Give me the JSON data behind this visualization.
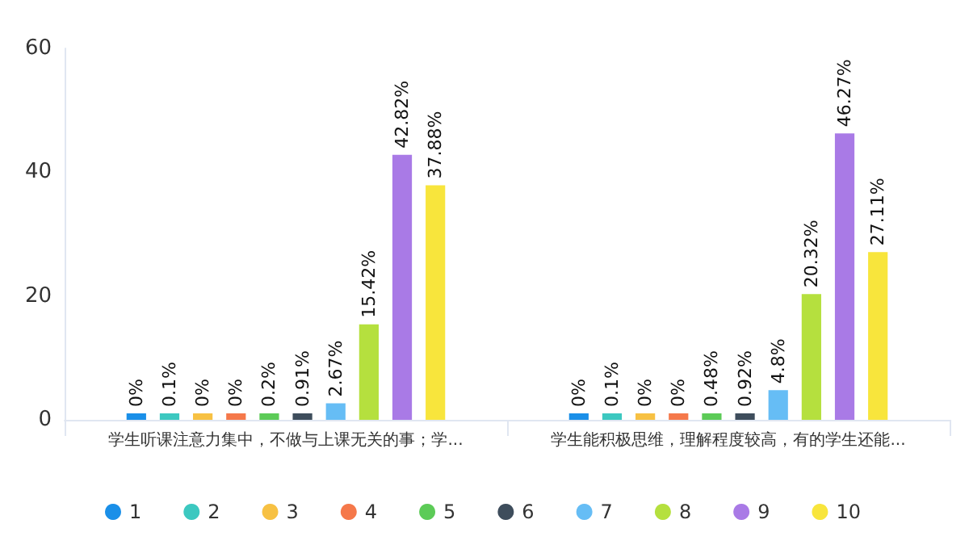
{
  "chart_data": {
    "type": "bar",
    "categories": [
      "学生听课注意力集中，不做与上课无关的事；学...",
      "学生能积极思维，理解程度较高，有的学生还能..."
    ],
    "series": [
      {
        "name": "1",
        "color": "#1a8fe8",
        "values": [
          0,
          0
        ],
        "value_labels": [
          "0%",
          "0%"
        ]
      },
      {
        "name": "2",
        "color": "#3cc8c0",
        "values": [
          0.1,
          0.1
        ],
        "value_labels": [
          "0.1%",
          "0.1%"
        ]
      },
      {
        "name": "3",
        "color": "#f7c143",
        "values": [
          0,
          0
        ],
        "value_labels": [
          "0%",
          "0%"
        ]
      },
      {
        "name": "4",
        "color": "#f5784a",
        "values": [
          0,
          0
        ],
        "value_labels": [
          "0%",
          "0%"
        ]
      },
      {
        "name": "5",
        "color": "#5ccb57",
        "values": [
          0.2,
          0.48
        ],
        "value_labels": [
          "0.2%",
          "0.48%"
        ]
      },
      {
        "name": "6",
        "color": "#3e4d5c",
        "values": [
          0.91,
          0.92
        ],
        "value_labels": [
          "0.91%",
          "0.92%"
        ]
      },
      {
        "name": "7",
        "color": "#66bdf5",
        "values": [
          2.67,
          4.8
        ],
        "value_labels": [
          "2.67%",
          "4.8%"
        ]
      },
      {
        "name": "8",
        "color": "#b5e03e",
        "values": [
          15.42,
          20.32
        ],
        "value_labels": [
          "15.42%",
          "20.32%"
        ]
      },
      {
        "name": "9",
        "color": "#a97ae6",
        "values": [
          42.82,
          46.27
        ],
        "value_labels": [
          "42.82%",
          "46.27%"
        ]
      },
      {
        "name": "10",
        "color": "#f8e53c",
        "values": [
          37.88,
          27.11
        ],
        "value_labels": [
          "37.88%",
          "27.11%"
        ]
      }
    ],
    "ylim": [
      0,
      60
    ],
    "yticks": [
      0,
      20,
      40,
      60
    ],
    "grid": false,
    "legend": "bottom"
  }
}
